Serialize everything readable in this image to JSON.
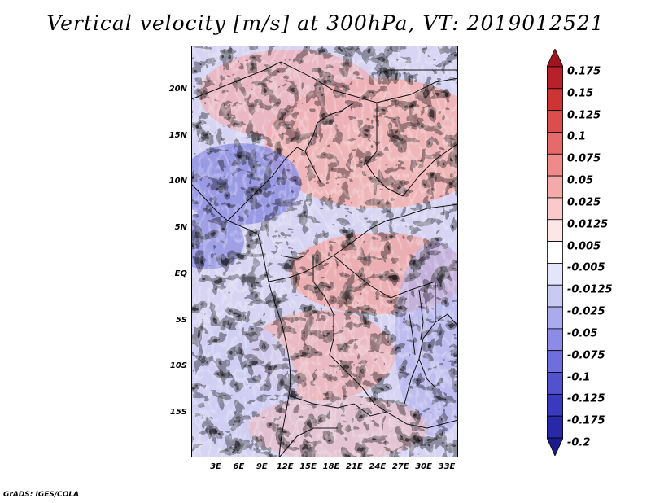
{
  "title": "Vertical velocity [m/s] at 300hPa, VT: 2019012521",
  "credit": "GrADS: IGES/COLA",
  "map": {
    "lat_labels": [
      "20N",
      "15N",
      "10N",
      "5N",
      "EQ",
      "5S",
      "10S",
      "15S"
    ],
    "lon_labels": [
      "3E",
      "6E",
      "9E",
      "12E",
      "15E",
      "18E",
      "21E",
      "24E",
      "27E",
      "30E",
      "33E"
    ]
  },
  "colorbar": {
    "labels": [
      "0.175",
      "0.15",
      "0.125",
      "0.1",
      "0.075",
      "0.05",
      "0.025",
      "0.0125",
      "0.005",
      "-0.005",
      "-0.0125",
      "-0.025",
      "-0.05",
      "-0.075",
      "-0.1",
      "-0.125",
      "-0.175",
      "-0.2"
    ],
    "colors": [
      "#a0141e",
      "#b8202a",
      "#cd3535",
      "#dc4e4e",
      "#e66a6a",
      "#ef8a8a",
      "#f5aaaa",
      "#fac9c9",
      "#fde6e6",
      "#ffffff",
      "#e4e4fb",
      "#c9c9f4",
      "#aaaaee",
      "#8c8ce6",
      "#6e6edc",
      "#5252cf",
      "#3a3ac0",
      "#2828a8",
      "#1a1a8a"
    ]
  }
}
